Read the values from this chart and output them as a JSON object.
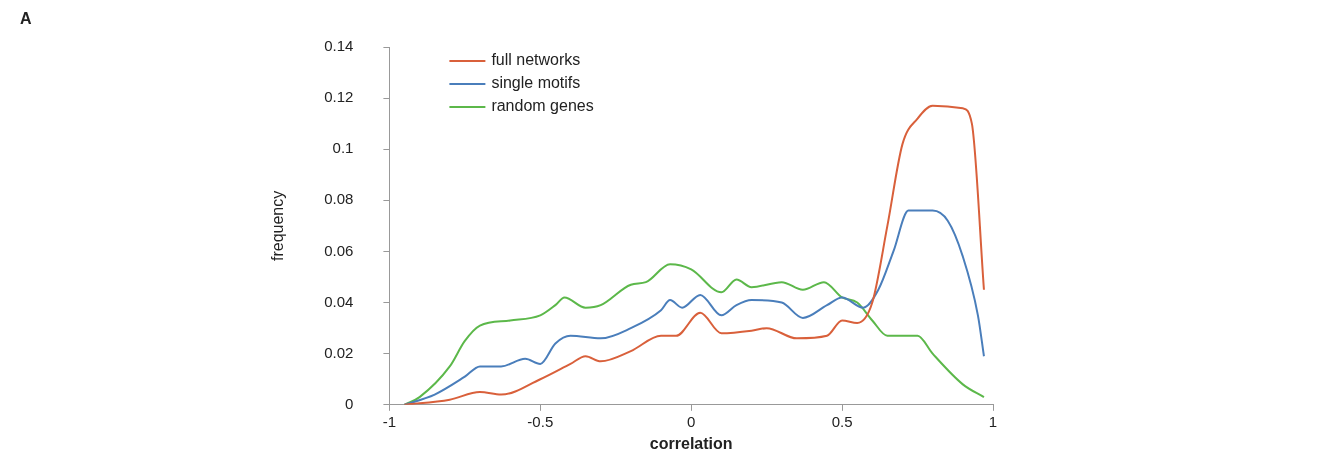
{
  "chart_data": {
    "type": "line",
    "xlabel": "correlation",
    "ylabel": "frequency",
    "annotations": [
      "A"
    ],
    "xlim": [
      -1,
      1
    ],
    "xticks": [
      -1,
      -0.5,
      0,
      0.5,
      1
    ],
    "ylim": [
      0,
      0.14
    ],
    "yticks": [
      0,
      0.02,
      0.04,
      0.06,
      0.08,
      0.1,
      0.12,
      0.14
    ],
    "grid": false,
    "legend": "top left",
    "marker": "none",
    "line_style": "solid",
    "series": [
      {
        "name": "full networks",
        "color": "#d9603b",
        "x": [
          -0.95,
          -0.8,
          -0.7,
          -0.63,
          -0.5,
          -0.4,
          -0.35,
          -0.3,
          -0.2,
          -0.1,
          -0.05,
          0.03,
          0.1,
          0.2,
          0.25,
          0.35,
          0.45,
          0.5,
          0.55,
          0.6,
          0.65,
          0.7,
          0.75,
          0.8,
          0.9,
          0.93,
          0.97
        ],
        "values": [
          0,
          0.002,
          0.005,
          0.004,
          0.01,
          0.016,
          0.019,
          0.017,
          0.021,
          0.027,
          0.027,
          0.036,
          0.028,
          0.029,
          0.03,
          0.026,
          0.027,
          0.033,
          0.032,
          0.04,
          0.07,
          0.102,
          0.112,
          0.117,
          0.116,
          0.11,
          0.045
        ]
      },
      {
        "name": "single motifs",
        "color": "#4a7ebb",
        "x": [
          -0.95,
          -0.85,
          -0.75,
          -0.7,
          -0.63,
          -0.55,
          -0.5,
          -0.45,
          -0.4,
          -0.3,
          -0.2,
          -0.1,
          -0.07,
          -0.03,
          0.03,
          0.1,
          0.15,
          0.2,
          0.3,
          0.37,
          0.45,
          0.5,
          0.57,
          0.62,
          0.67,
          0.72,
          0.8,
          0.85,
          0.9,
          0.95,
          0.97
        ],
        "values": [
          0,
          0.004,
          0.011,
          0.015,
          0.015,
          0.018,
          0.016,
          0.024,
          0.027,
          0.026,
          0.03,
          0.037,
          0.041,
          0.038,
          0.043,
          0.035,
          0.039,
          0.041,
          0.04,
          0.034,
          0.039,
          0.042,
          0.038,
          0.045,
          0.06,
          0.076,
          0.076,
          0.072,
          0.058,
          0.035,
          0.019
        ]
      },
      {
        "name": "random genes",
        "color": "#5cb84a",
        "x": [
          -0.95,
          -0.9,
          -0.8,
          -0.75,
          -0.7,
          -0.6,
          -0.5,
          -0.45,
          -0.42,
          -0.35,
          -0.3,
          -0.2,
          -0.15,
          -0.07,
          0,
          0.1,
          0.15,
          0.2,
          0.3,
          0.37,
          0.44,
          0.5,
          0.55,
          0.6,
          0.65,
          0.75,
          0.8,
          0.9,
          0.97
        ],
        "values": [
          0,
          0.003,
          0.015,
          0.025,
          0.031,
          0.033,
          0.035,
          0.039,
          0.042,
          0.038,
          0.039,
          0.047,
          0.048,
          0.055,
          0.053,
          0.044,
          0.049,
          0.046,
          0.048,
          0.045,
          0.048,
          0.042,
          0.04,
          0.033,
          0.027,
          0.027,
          0.02,
          0.008,
          0.003
        ]
      }
    ]
  }
}
